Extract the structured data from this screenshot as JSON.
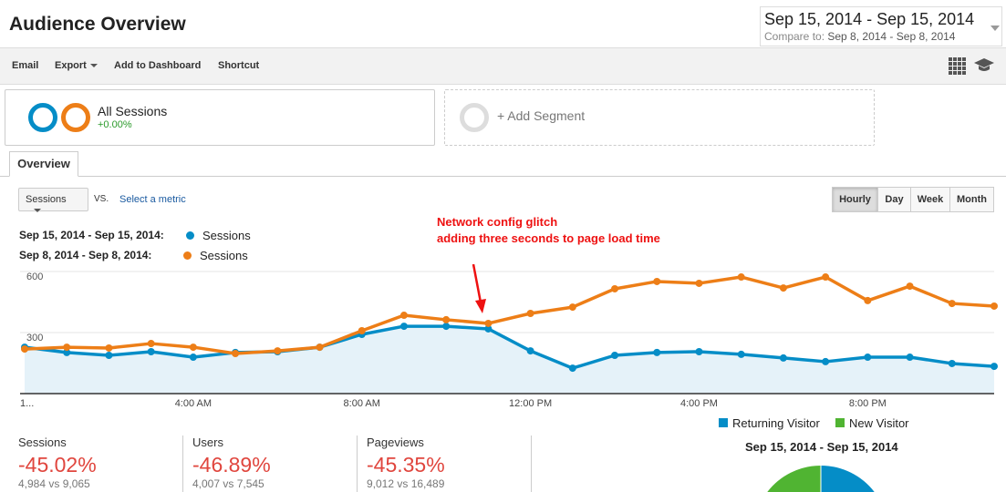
{
  "header": {
    "title": "Audience Overview",
    "date_range": "Sep 15, 2014 - Sep 15, 2014",
    "compare_label": "Compare to:",
    "compare_range": "Sep 8, 2014 - Sep 8, 2014"
  },
  "toolbar": {
    "email": "Email",
    "export": "Export",
    "add_to_dashboard": "Add to Dashboard",
    "shortcut": "Shortcut"
  },
  "segments": {
    "all_sessions": "All Sessions",
    "all_sessions_change": "+0.00%",
    "add_segment": "+ Add Segment"
  },
  "tabs": {
    "overview": "Overview"
  },
  "controls": {
    "metric": "Sessions",
    "vs": "VS.",
    "select_metric": "Select a metric",
    "granularity": [
      "Hourly",
      "Day",
      "Week",
      "Month"
    ],
    "active": "Hourly"
  },
  "legend": [
    {
      "range": "Sep 15, 2014 - Sep 15, 2014:",
      "metric": "Sessions",
      "color": "#058dc7"
    },
    {
      "range": "Sep 8, 2014 - Sep 8, 2014:",
      "metric": "Sessions",
      "color": "#ed7e17"
    }
  ],
  "annotation": {
    "line1": "Network config glitch",
    "line2": "adding three seconds to page load time"
  },
  "chart_data": {
    "type": "line",
    "x": [
      0,
      1,
      2,
      3,
      4,
      5,
      6,
      7,
      8,
      9,
      10,
      11,
      12,
      13,
      14,
      15,
      16,
      17,
      18,
      19,
      20,
      21,
      22,
      23
    ],
    "ylim": [
      0,
      720
    ],
    "yticks": [
      {
        "v": 300,
        "label": "300"
      },
      {
        "v": 600,
        "label": "600"
      }
    ],
    "xticks": [
      {
        "v": 0,
        "label": "1..."
      },
      {
        "v": 4,
        "label": "4:00 AM"
      },
      {
        "v": 8,
        "label": "8:00 AM"
      },
      {
        "v": 12,
        "label": "12:00 PM"
      },
      {
        "v": 16,
        "label": "4:00 PM"
      },
      {
        "v": 20,
        "label": "8:00 PM"
      }
    ],
    "series": [
      {
        "name": "Sessions (Sep 15, 2014)",
        "color": "#058dc7",
        "values": [
          228,
          202,
          188,
          206,
          179,
          202,
          206,
          228,
          291,
          331,
          331,
          318,
          210,
          125,
          188,
          202,
          206,
          193,
          175,
          157,
          179,
          179,
          148,
          134
        ]
      },
      {
        "name": "Sessions (Sep 8, 2014)",
        "color": "#ed7e17",
        "values": [
          219,
          228,
          224,
          246,
          228,
          197,
          210,
          228,
          309,
          385,
          363,
          345,
          394,
          425,
          515,
          551,
          542,
          573,
          519,
          573,
          457,
          528,
          443,
          430
        ]
      }
    ]
  },
  "metrics": [
    {
      "label": "Sessions",
      "change": "-45.02%",
      "compare": "4,984 vs 9,065"
    },
    {
      "label": "Users",
      "change": "-46.89%",
      "compare": "4,007 vs 7,545"
    },
    {
      "label": "Pageviews",
      "change": "-45.35%",
      "compare": "9,012 vs 16,489"
    }
  ],
  "pie": {
    "legend": [
      {
        "label": "Returning Visitor",
        "color": "#058dc7"
      },
      {
        "label": "New Visitor",
        "color": "#50b432"
      }
    ],
    "title": "Sep 15, 2014 - Sep 15, 2014"
  }
}
